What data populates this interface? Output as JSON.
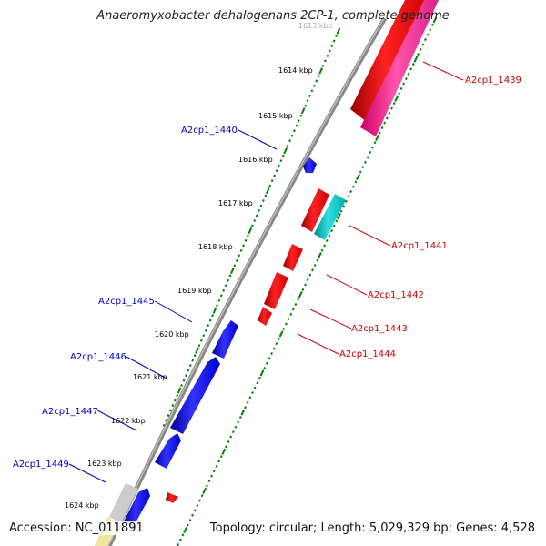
{
  "title": "Anaeromyxobacter dehalogenans 2CP-1, complete genome",
  "footer": {
    "accession": "Accession: NC_011891",
    "info": "Topology: circular; Length: 5,029,329 bp; Genes: 4,528"
  },
  "colors": {
    "forward_gene": "#ff0000",
    "reverse_gene": "#0000ff",
    "cyan_gene": "#00cccc",
    "pink_gene": "#ff3399",
    "backbone": "#808080",
    "scale_dots": "#008000",
    "tick_label": "#000000"
  },
  "scale_ticks": [
    {
      "label": "1613 kbp"
    },
    {
      "label": "1614 kbp"
    },
    {
      "label": "1615 kbp"
    },
    {
      "label": "1616 kbp"
    },
    {
      "label": "1617 kbp"
    },
    {
      "label": "1618 kbp"
    },
    {
      "label": "1619 kbp"
    },
    {
      "label": "1620 kbp"
    },
    {
      "label": "1621 kbp"
    },
    {
      "label": "1622 kbp"
    },
    {
      "label": "1623 kbp"
    },
    {
      "label": "1624 kbp"
    }
  ],
  "gene_labels_left": [
    {
      "label": "A2cp1_1440"
    },
    {
      "label": "A2cp1_1445"
    },
    {
      "label": "A2cp1_1446"
    },
    {
      "label": "A2cp1_1447"
    },
    {
      "label": "A2cp1_1449"
    }
  ],
  "gene_labels_right": [
    {
      "label": "A2cp1_1439"
    },
    {
      "label": "A2cp1_1441"
    },
    {
      "label": "A2cp1_1442"
    },
    {
      "label": "A2cp1_1443"
    },
    {
      "label": "A2cp1_1444"
    }
  ]
}
